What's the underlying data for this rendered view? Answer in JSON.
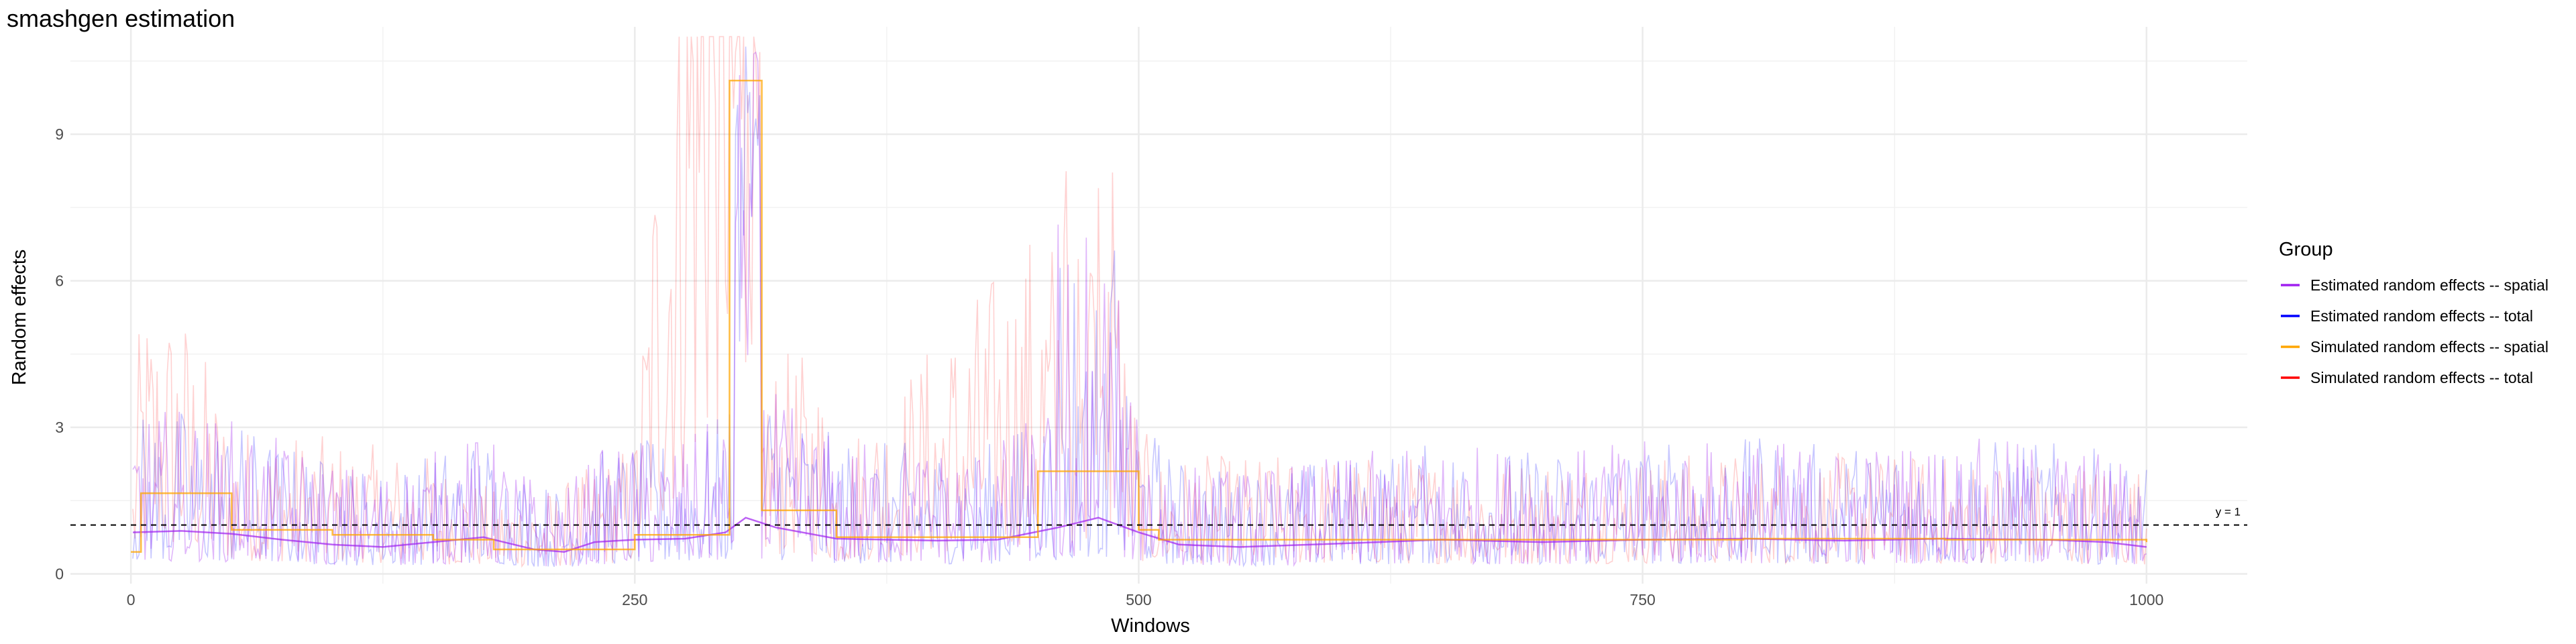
{
  "chart_data": {
    "type": "line",
    "title": "smashgen estimation",
    "xlabel": "Windows",
    "ylabel": "Random effects",
    "xlim": [
      -30,
      1050
    ],
    "ylim": [
      -0.2,
      11.2
    ],
    "x_ticks": [
      0,
      250,
      500,
      750,
      1000
    ],
    "x_tick_labels": [
      "0",
      "250",
      "500",
      "750",
      "1000"
    ],
    "y_ticks": [
      0,
      3,
      6,
      9
    ],
    "y_tick_labels": [
      "0",
      "3",
      "6",
      "9"
    ],
    "grid": true,
    "legend": {
      "title": "Group",
      "position": "right",
      "items": [
        {
          "label": "Estimated random effects -- spatial",
          "color": "#a020f0"
        },
        {
          "label": "Estimated random effects -- total",
          "color": "#0000ff"
        },
        {
          "label": "Simulated random effects -- spatial",
          "color": "#ffa500"
        },
        {
          "label": "Simulated random effects -- total",
          "color": "#ff0000"
        }
      ]
    },
    "reference_line": {
      "y": 1,
      "label": "y = 1",
      "style": "dashed"
    },
    "series": [
      {
        "name": "Estimated random effects -- spatial",
        "color": "#a020f0",
        "x": [
          1,
          25,
          50,
          75,
          100,
          125,
          150,
          175,
          200,
          215,
          230,
          250,
          275,
          295,
          305,
          320,
          350,
          400,
          430,
          460,
          480,
          500,
          520,
          550,
          600,
          650,
          700,
          750,
          800,
          850,
          900,
          950,
          980,
          1000
        ],
        "y": [
          0.85,
          0.88,
          0.82,
          0.7,
          0.6,
          0.55,
          0.65,
          0.75,
          0.5,
          0.45,
          0.65,
          0.7,
          0.72,
          0.85,
          1.15,
          0.95,
          0.72,
          0.68,
          0.7,
          0.95,
          1.15,
          0.85,
          0.6,
          0.55,
          0.62,
          0.7,
          0.65,
          0.7,
          0.72,
          0.68,
          0.72,
          0.7,
          0.65,
          0.55
        ]
      },
      {
        "name": "Simulated random effects -- spatial",
        "color": "#ffa500",
        "x": [
          0,
          5,
          25,
          50,
          100,
          150,
          180,
          210,
          250,
          297,
          313,
          340,
          350,
          450,
          485,
          500,
          510,
          600,
          700,
          800,
          900,
          1000
        ],
        "y": [
          0.45,
          1.65,
          1.65,
          0.9,
          0.8,
          0.7,
          0.5,
          0.5,
          0.8,
          10.1,
          1.3,
          1.3,
          0.75,
          2.1,
          2.1,
          0.9,
          0.7,
          0.7,
          0.7,
          0.72,
          0.7,
          0.65
        ]
      }
    ]
  }
}
